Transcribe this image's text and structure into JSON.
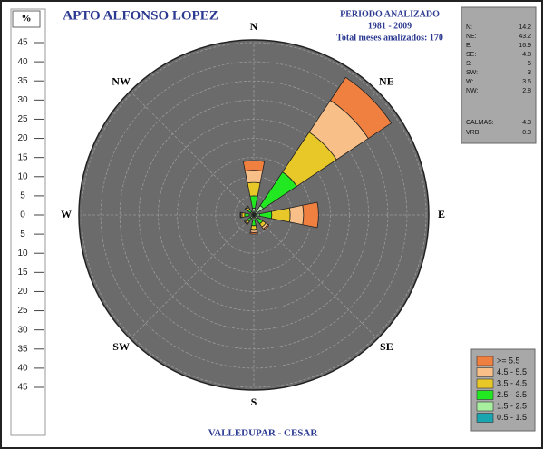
{
  "chart_data": {
    "type": "windrose",
    "title": "APTO ALFONSO LOPEZ",
    "period_title": "PERIODO ANALIZADO",
    "period": "1981 - 2009",
    "months": "Total meses analizados: 170",
    "footer": "VALLEDUPAR - CESAR",
    "unit": "%",
    "categories": [
      "N",
      "NE",
      "E",
      "SE",
      "S",
      "SW",
      "W",
      "NW"
    ],
    "ylim": [
      -45,
      45
    ],
    "yticks": [
      45,
      40,
      35,
      30,
      25,
      20,
      15,
      10,
      5,
      0,
      {
        "value": -5,
        "label": "5"
      },
      {
        "value": -10,
        "label": "10"
      },
      {
        "value": -15,
        "label": "15"
      },
      {
        "value": -20,
        "label": "20"
      },
      {
        "value": -25,
        "label": "25"
      },
      {
        "value": -30,
        "label": "30"
      },
      {
        "value": -35,
        "label": "35"
      },
      {
        "value": -40,
        "label": "40"
      },
      {
        "value": -45,
        "label": "45"
      }
    ],
    "grid": true,
    "series": [
      {
        "name": "0.5 - 1.5",
        "color": "#1aa6b0",
        "values": [
          0.3,
          0.5,
          0.3,
          0.3,
          0.4,
          0.3,
          0.3,
          0.3
        ]
      },
      {
        "name": "1.5 - 2.5",
        "color": "#a8f0a0",
        "values": [
          1.5,
          2.5,
          1.2,
          1.0,
          1.0,
          0.8,
          0.9,
          0.7
        ]
      },
      {
        "name": "2.5 - 3.5",
        "color": "#22e822",
        "values": [
          3.2,
          10.5,
          3.2,
          1.5,
          1.4,
          1.0,
          1.2,
          0.9
        ]
      },
      {
        "name": "3.5 - 4.5",
        "color": "#e8c828",
        "values": [
          3.5,
          12.5,
          4.8,
          1.0,
          1.2,
          0.5,
          0.7,
          0.5
        ]
      },
      {
        "name": "4.5 - 5.5",
        "color": "#f8c088",
        "values": [
          3.2,
          10,
          3.5,
          0.6,
          0.6,
          0.3,
          0.3,
          0.3
        ]
      },
      {
        "name": ">= 5.5",
        "color": "#f08040",
        "values": [
          2.5,
          7.2,
          3.9,
          0.4,
          0.4,
          0.1,
          0.2,
          0.1
        ]
      }
    ],
    "summary": [
      {
        "label": "N:",
        "value": 14.2
      },
      {
        "label": "NE:",
        "value": 43.2
      },
      {
        "label": "E:",
        "value": 16.9
      },
      {
        "label": "SE:",
        "value": 4.8
      },
      {
        "label": "S:",
        "value": 5
      },
      {
        "label": "SW:",
        "value": 3
      },
      {
        "label": "W:",
        "value": 3.6
      },
      {
        "label": "NW:",
        "value": 2.8
      }
    ],
    "calms": [
      {
        "label": "CALMAS:",
        "value": 4.3
      },
      {
        "label": "VRB:",
        "value": 0.3
      }
    ]
  }
}
